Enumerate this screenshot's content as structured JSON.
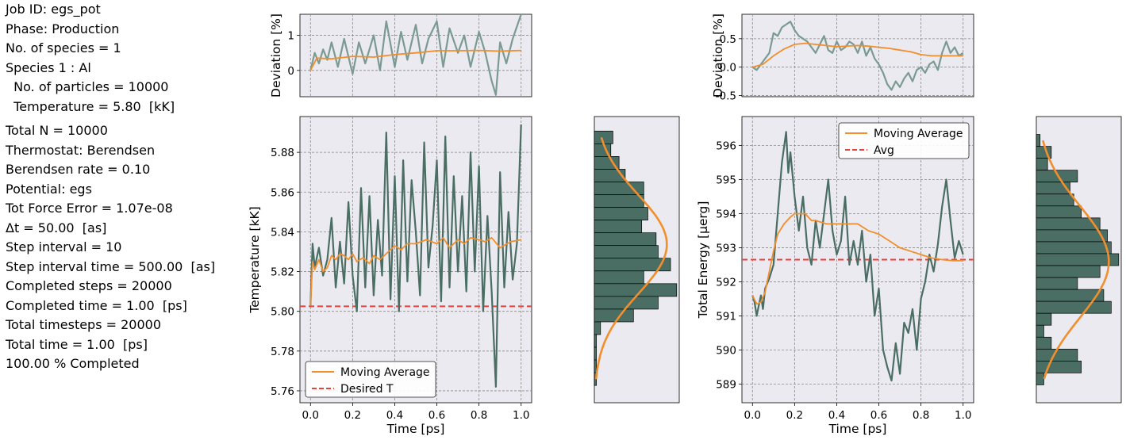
{
  "info": {
    "job_id": "Job ID: egs_pot",
    "phase": "Phase: Production",
    "n_species": "No. of species = 1",
    "species": "Species 1 : Al",
    "n_particles": "  No. of particles = 10000",
    "temperature": "  Temperature = 5.80  [kK]",
    "total_n": "Total N = 10000",
    "thermostat": "Thermostat: Berendsen",
    "berendsen_rate": "Berendsen rate = 0.10",
    "potential": "Potential: egs",
    "force_error": "Tot Force Error = 1.07e-08",
    "dt": "Δt = 50.00  [as]",
    "step_interval": "Step interval = 10",
    "step_interval_time": "Step interval time = 500.00  [as]",
    "completed_steps": "Completed steps = 20000",
    "completed_time": "Completed time = 1.00  [ps]",
    "total_timesteps": "Total timesteps = 20000",
    "total_time": "Total time = 1.00  [ps]",
    "completed": "100.00 % Completed"
  },
  "colors": {
    "series": "#4a6e63",
    "deviation": "#7a9a92",
    "moving_average": "#f28e2b",
    "reference": "#e8403d",
    "hist": "#4a6e63",
    "background": "#eaeaf0"
  },
  "chart_data": [
    {
      "id": "temp_dev",
      "type": "line",
      "ylabel": "Deviation [%]",
      "ylim": [
        -0.75,
        1.6
      ],
      "yticks": [
        0,
        1
      ],
      "xlim": [
        -0.05,
        1.05
      ],
      "series": [
        {
          "values_x": [
            0.0,
            0.02,
            0.04,
            0.06,
            0.08,
            0.1,
            0.13,
            0.16,
            0.2,
            0.23,
            0.26,
            0.3,
            0.33,
            0.36,
            0.4,
            0.43,
            0.46,
            0.5,
            0.53,
            0.56,
            0.6,
            0.63,
            0.66,
            0.7,
            0.73,
            0.76,
            0.8,
            0.83,
            0.86,
            0.88,
            0.9,
            0.93,
            0.96,
            1.0
          ],
          "values_y": [
            0.0,
            0.5,
            0.2,
            0.6,
            0.3,
            0.8,
            0.1,
            0.9,
            -0.1,
            0.8,
            0.2,
            1.0,
            0.0,
            1.4,
            0.1,
            1.1,
            0.3,
            1.3,
            0.2,
            0.9,
            1.4,
            0.1,
            1.2,
            0.5,
            1.0,
            0.1,
            1.1,
            0.5,
            -0.3,
            -0.7,
            0.8,
            0.2,
            0.9,
            1.6
          ]
        },
        {
          "name": "Moving Average",
          "values_x": [
            0.0,
            0.03,
            0.1,
            0.2,
            0.3,
            0.4,
            0.5,
            0.6,
            0.7,
            0.8,
            0.9,
            1.0
          ],
          "values_y": [
            0.0,
            0.35,
            0.33,
            0.4,
            0.38,
            0.45,
            0.5,
            0.56,
            0.56,
            0.57,
            0.55,
            0.57
          ]
        }
      ]
    },
    {
      "id": "temperature",
      "type": "line",
      "xlabel": "Time [ps]",
      "ylabel": "Temperature [kK]",
      "xlim": [
        -0.05,
        1.05
      ],
      "ylim": [
        5.754,
        5.898
      ],
      "xticks": [
        0.0,
        0.2,
        0.4,
        0.6,
        0.8,
        1.0
      ],
      "yticks": [
        5.76,
        5.78,
        5.8,
        5.82,
        5.84,
        5.86,
        5.88
      ],
      "legend": "lower-left",
      "series": [
        {
          "values_x": [
            0.0,
            0.01,
            0.02,
            0.04,
            0.06,
            0.08,
            0.1,
            0.12,
            0.14,
            0.16,
            0.18,
            0.2,
            0.22,
            0.24,
            0.26,
            0.28,
            0.3,
            0.32,
            0.34,
            0.36,
            0.38,
            0.4,
            0.42,
            0.44,
            0.46,
            0.48,
            0.5,
            0.52,
            0.54,
            0.56,
            0.58,
            0.6,
            0.62,
            0.64,
            0.66,
            0.68,
            0.7,
            0.72,
            0.74,
            0.76,
            0.78,
            0.8,
            0.82,
            0.84,
            0.86,
            0.88,
            0.9,
            0.92,
            0.94,
            0.96,
            0.98,
            1.0
          ],
          "values_y": [
            5.803,
            5.834,
            5.822,
            5.832,
            5.818,
            5.826,
            5.847,
            5.812,
            5.835,
            5.814,
            5.855,
            5.818,
            5.8,
            5.862,
            5.812,
            5.858,
            5.808,
            5.846,
            5.818,
            5.89,
            5.806,
            5.868,
            5.8,
            5.876,
            5.815,
            5.866,
            5.84,
            5.808,
            5.885,
            5.822,
            5.843,
            5.876,
            5.805,
            5.888,
            5.812,
            5.868,
            5.82,
            5.858,
            5.81,
            5.88,
            5.82,
            5.873,
            5.8,
            5.848,
            5.81,
            5.762,
            5.87,
            5.812,
            5.85,
            5.816,
            5.834,
            5.894
          ]
        },
        {
          "name": "Moving Average",
          "values_x": [
            0.0,
            0.01,
            0.02,
            0.04,
            0.06,
            0.08,
            0.1,
            0.12,
            0.14,
            0.16,
            0.18,
            0.2,
            0.22,
            0.25,
            0.28,
            0.3,
            0.33,
            0.36,
            0.4,
            0.43,
            0.46,
            0.5,
            0.55,
            0.6,
            0.63,
            0.66,
            0.7,
            0.73,
            0.76,
            0.8,
            0.83,
            0.86,
            0.9,
            0.95,
            1.0
          ],
          "values_y": [
            5.803,
            5.825,
            5.821,
            5.826,
            5.82,
            5.822,
            5.828,
            5.826,
            5.829,
            5.828,
            5.826,
            5.829,
            5.825,
            5.827,
            5.824,
            5.828,
            5.826,
            5.829,
            5.833,
            5.831,
            5.834,
            5.834,
            5.836,
            5.834,
            5.837,
            5.832,
            5.836,
            5.834,
            5.837,
            5.836,
            5.835,
            5.837,
            5.832,
            5.835,
            5.836
          ]
        }
      ],
      "reference": {
        "name": "Desired T",
        "value": 5.8025
      }
    },
    {
      "id": "temp_hist",
      "type": "bar",
      "ylim": [
        5.754,
        5.898
      ],
      "bins": [
        5.8875,
        5.8811,
        5.8747,
        5.8683,
        5.8619,
        5.8555,
        5.8491,
        5.8427,
        5.8363,
        5.8299,
        5.8235,
        5.8171,
        5.8107,
        5.8043,
        5.7979,
        5.7915,
        5.7851,
        5.7787,
        5.7723,
        5.7659
      ],
      "counts": [
        9,
        8,
        12,
        15,
        24,
        24,
        26,
        23,
        30,
        31,
        37,
        24,
        40,
        31,
        19,
        3,
        1,
        1,
        1,
        1
      ]
    },
    {
      "id": "energy_dev",
      "type": "line",
      "ylabel": "Deviation [%]",
      "ylim": [
        -0.52,
        0.93
      ],
      "yticks": [
        -0.5,
        0.0,
        0.5
      ],
      "xlim": [
        -0.05,
        1.05
      ],
      "series": [
        {
          "values_x": [
            0.0,
            0.02,
            0.04,
            0.06,
            0.08,
            0.1,
            0.12,
            0.14,
            0.16,
            0.18,
            0.2,
            0.22,
            0.24,
            0.26,
            0.28,
            0.3,
            0.32,
            0.34,
            0.36,
            0.38,
            0.4,
            0.42,
            0.44,
            0.46,
            0.48,
            0.5,
            0.52,
            0.54,
            0.56,
            0.58,
            0.6,
            0.62,
            0.64,
            0.66,
            0.68,
            0.7,
            0.72,
            0.74,
            0.76,
            0.78,
            0.8,
            0.82,
            0.84,
            0.86,
            0.88,
            0.9,
            0.92,
            0.94,
            0.96,
            0.98,
            1.0
          ],
          "values_y": [
            0.0,
            -0.05,
            0.05,
            0.15,
            0.25,
            0.6,
            0.55,
            0.7,
            0.75,
            0.8,
            0.65,
            0.55,
            0.5,
            0.45,
            0.35,
            0.25,
            0.4,
            0.55,
            0.3,
            0.25,
            0.45,
            0.3,
            0.35,
            0.45,
            0.4,
            0.25,
            0.45,
            0.2,
            0.35,
            0.15,
            0.05,
            -0.1,
            -0.3,
            -0.4,
            -0.25,
            -0.35,
            -0.2,
            -0.1,
            -0.25,
            -0.05,
            0.0,
            -0.1,
            0.05,
            0.1,
            -0.05,
            0.25,
            0.45,
            0.25,
            0.35,
            0.2,
            0.25
          ]
        },
        {
          "name": "Moving Average",
          "values_x": [
            0.0,
            0.05,
            0.1,
            0.15,
            0.2,
            0.25,
            0.3,
            0.4,
            0.5,
            0.55,
            0.6,
            0.65,
            0.7,
            0.75,
            0.8,
            0.85,
            0.9,
            0.95,
            1.0
          ],
          "values_y": [
            0.0,
            0.05,
            0.2,
            0.32,
            0.4,
            0.42,
            0.4,
            0.36,
            0.38,
            0.37,
            0.35,
            0.33,
            0.3,
            0.27,
            0.22,
            0.2,
            0.2,
            0.2,
            0.2
          ]
        }
      ]
    },
    {
      "id": "energy",
      "type": "line",
      "xlabel": "Time [ps]",
      "ylabel": "Total Energy [μerg]",
      "xlim": [
        -0.05,
        1.05
      ],
      "ylim": [
        588.45,
        596.85
      ],
      "xticks": [
        0.0,
        0.2,
        0.4,
        0.6,
        0.8,
        1.0
      ],
      "yticks": [
        589,
        590,
        591,
        592,
        593,
        594,
        595,
        596
      ],
      "legend": "top-right",
      "series": [
        {
          "values_x": [
            0.0,
            0.01,
            0.02,
            0.03,
            0.04,
            0.05,
            0.06,
            0.08,
            0.1,
            0.12,
            0.14,
            0.16,
            0.17,
            0.18,
            0.2,
            0.22,
            0.24,
            0.26,
            0.28,
            0.3,
            0.32,
            0.34,
            0.36,
            0.38,
            0.4,
            0.42,
            0.44,
            0.46,
            0.48,
            0.5,
            0.52,
            0.54,
            0.56,
            0.58,
            0.6,
            0.62,
            0.64,
            0.66,
            0.68,
            0.7,
            0.72,
            0.74,
            0.76,
            0.78,
            0.8,
            0.82,
            0.84,
            0.86,
            0.88,
            0.9,
            0.92,
            0.94,
            0.96,
            0.98,
            1.0
          ],
          "values_y": [
            591.6,
            591.4,
            591.0,
            591.3,
            591.6,
            591.2,
            591.8,
            592.1,
            592.5,
            594.0,
            595.5,
            596.4,
            595.2,
            595.8,
            594.5,
            593.5,
            594.5,
            593.0,
            592.5,
            593.8,
            593.0,
            594.0,
            595.0,
            593.5,
            592.8,
            593.2,
            594.5,
            592.5,
            593.2,
            592.5,
            593.5,
            592.0,
            592.8,
            591.0,
            591.8,
            590.0,
            589.5,
            589.1,
            590.2,
            589.3,
            590.8,
            590.5,
            591.2,
            590.0,
            591.5,
            592.0,
            592.8,
            592.3,
            593.1,
            594.2,
            595.0,
            593.8,
            592.7,
            593.2,
            592.8
          ]
        },
        {
          "name": "Moving Average",
          "values_x": [
            0.0,
            0.02,
            0.04,
            0.06,
            0.08,
            0.1,
            0.12,
            0.15,
            0.18,
            0.2,
            0.22,
            0.25,
            0.28,
            0.3,
            0.35,
            0.4,
            0.45,
            0.5,
            0.55,
            0.6,
            0.65,
            0.7,
            0.75,
            0.8,
            0.85,
            0.9,
            0.95,
            1.0
          ],
          "values_y": [
            591.6,
            591.35,
            591.4,
            591.7,
            592.3,
            592.9,
            593.4,
            593.7,
            593.9,
            594.0,
            594.0,
            594.0,
            593.8,
            593.8,
            593.7,
            593.7,
            593.7,
            593.7,
            593.5,
            593.4,
            593.2,
            593.0,
            592.9,
            592.8,
            592.7,
            592.65,
            592.62,
            592.62
          ]
        }
      ],
      "reference": {
        "name": "Avg",
        "value": 592.65
      }
    },
    {
      "id": "energy_hist",
      "type": "bar",
      "ylim": [
        588.45,
        596.85
      ],
      "bins": [
        596.15,
        595.8,
        595.45,
        595.1,
        594.75,
        594.4,
        594.05,
        593.7,
        593.35,
        593.0,
        592.65,
        592.3,
        591.95,
        591.6,
        591.25,
        590.9,
        590.55,
        590.2,
        589.85,
        589.5,
        589.15
      ],
      "counts": [
        1,
        4,
        3,
        11,
        9,
        10,
        12,
        17,
        19,
        20,
        22,
        17,
        11,
        18,
        20,
        4,
        2,
        4,
        11,
        12,
        2
      ]
    }
  ],
  "legends": {
    "temperature": [
      "Moving Average",
      "Desired T"
    ],
    "energy": [
      "Moving Average",
      "Avg"
    ]
  }
}
